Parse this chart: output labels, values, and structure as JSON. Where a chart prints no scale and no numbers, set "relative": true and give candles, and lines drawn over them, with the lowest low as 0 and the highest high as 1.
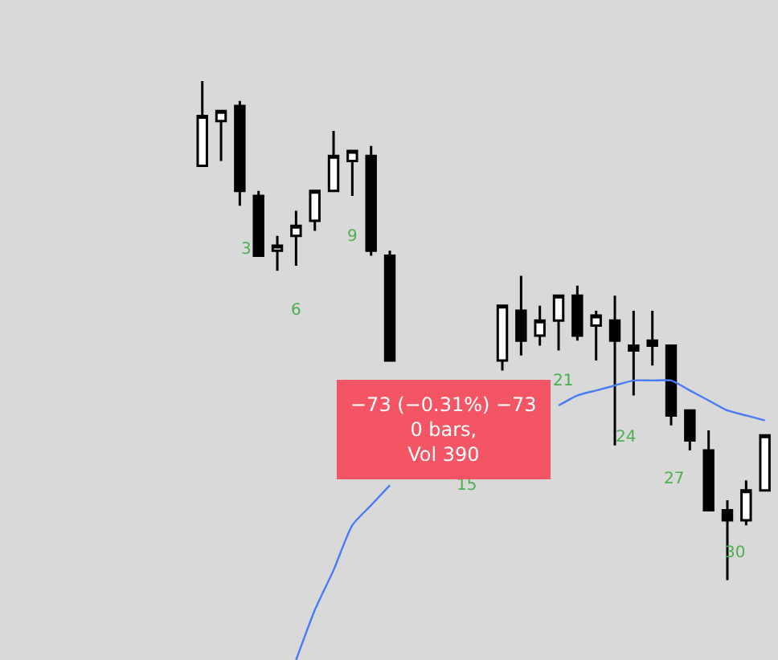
{
  "chart_data": {
    "type": "candlestick",
    "relative": true,
    "categories": [
      null,
      null,
      null,
      null,
      null,
      null,
      null,
      null,
      null,
      null,
      null,
      null,
      null,
      null,
      null,
      null,
      null,
      null,
      null,
      null,
      null,
      null,
      null,
      null,
      null,
      null,
      null,
      null,
      null,
      null,
      null
    ],
    "series": [
      {
        "color": "#000000",
        "ohlc": [
          [
            0.83,
            1.0,
            0.83,
            0.93
          ],
          [
            0.92,
            0.94,
            0.84,
            0.94
          ],
          [
            0.95,
            0.96,
            0.75,
            0.78
          ],
          [
            0.77,
            0.78,
            0.65,
            0.65
          ],
          [
            0.66,
            0.69,
            0.62,
            0.67
          ],
          [
            0.69,
            0.74,
            0.63,
            0.71
          ],
          [
            0.72,
            0.78,
            0.7,
            0.78
          ],
          [
            0.78,
            0.9,
            0.78,
            0.85
          ],
          [
            0.84,
            0.86,
            0.77,
            0.86
          ],
          [
            0.85,
            0.87,
            0.65,
            0.66
          ],
          [
            0.65,
            0.66,
            0.44,
            0.44
          ],
          null,
          null,
          null,
          null,
          null,
          [
            0.44,
            0.55,
            0.42,
            0.55
          ],
          [
            0.54,
            0.61,
            0.45,
            0.48
          ],
          [
            0.49,
            0.55,
            0.47,
            0.52
          ],
          [
            0.52,
            0.57,
            0.46,
            0.57
          ],
          [
            0.57,
            0.59,
            0.48,
            0.49
          ],
          [
            0.51,
            0.54,
            0.44,
            0.53
          ],
          [
            0.52,
            0.57,
            0.27,
            0.48
          ],
          [
            0.47,
            0.54,
            0.37,
            0.46
          ],
          [
            0.48,
            0.54,
            0.43,
            0.47
          ],
          [
            0.47,
            0.47,
            0.31,
            0.33
          ],
          [
            0.34,
            0.34,
            0.26,
            0.28
          ],
          [
            0.26,
            0.3,
            0.14,
            0.14
          ],
          [
            0.14,
            0.16,
            0.0,
            0.12
          ],
          [
            0.12,
            0.2,
            0.11,
            0.18
          ],
          [
            0.18,
            0.29,
            0.18,
            0.29
          ]
        ]
      },
      {
        "type": "line",
        "color": "#4a7bf7",
        "values": [
          null,
          null,
          null,
          null,
          null,
          -0.16,
          -0.06,
          0.02,
          0.11,
          0.15,
          0.19,
          null,
          null,
          null,
          null,
          null,
          null,
          null,
          null,
          0.35,
          0.37,
          0.38,
          0.39,
          0.4,
          0.4,
          0.4,
          0.38,
          0.36,
          0.34,
          0.33,
          0.32
        ]
      }
    ],
    "annotations": [
      "3",
      "6",
      "9",
      "15",
      "21",
      "24",
      "27",
      "30",
      "−73 (−0.31%) −73\n0 bars,\nVol 390"
    ]
  }
}
